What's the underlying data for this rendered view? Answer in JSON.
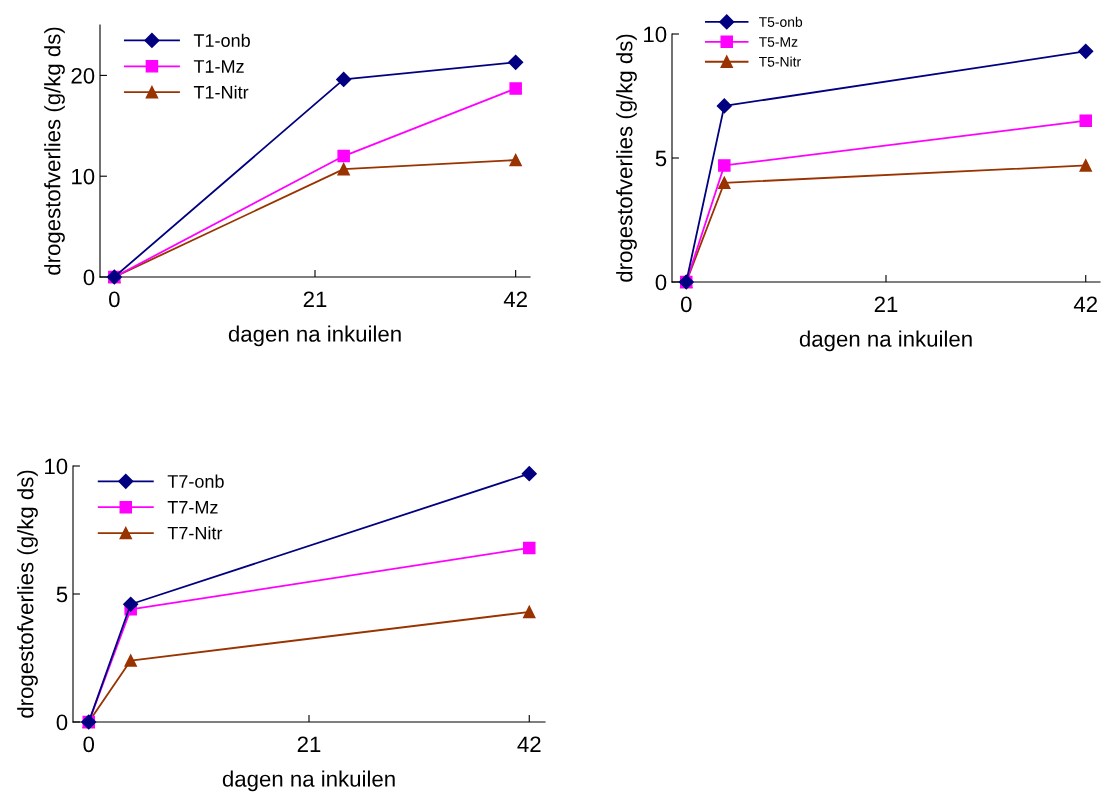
{
  "chart_data": [
    {
      "type": "line",
      "xlabel": "dagen na inkuilen",
      "ylabel": "drogestofverlies (g/kg ds)",
      "xlim": [
        -1.5,
        43.5
      ],
      "xticks": [
        0,
        21,
        42
      ],
      "ylim": [
        0,
        25
      ],
      "yticks": [
        0,
        10,
        20
      ],
      "legend": "top left",
      "grid": false,
      "series": [
        {
          "name": "T1-onb",
          "color": "#000080",
          "marker": "diamond",
          "x": [
            0,
            24,
            42
          ],
          "values": [
            0,
            19.6,
            21.3
          ]
        },
        {
          "name": "T1-Mz",
          "color": "#ff00ff",
          "marker": "square",
          "x": [
            0,
            24,
            42
          ],
          "values": [
            0,
            12.0,
            18.7
          ]
        },
        {
          "name": "T1-Nitr",
          "color": "#993300",
          "marker": "triangle",
          "x": [
            0,
            24,
            42
          ],
          "values": [
            0,
            10.7,
            11.6
          ]
        }
      ]
    },
    {
      "type": "line",
      "xlabel": "dagen na inkuilen",
      "ylabel": "drogestofverlies (g/kg ds)",
      "xlim": [
        -1.5,
        43.5
      ],
      "xticks": [
        0,
        21,
        42
      ],
      "ylim": [
        0,
        10
      ],
      "yticks": [
        0,
        5,
        10
      ],
      "legend": "top left",
      "grid": false,
      "series": [
        {
          "name": "T5-onb",
          "color": "#000080",
          "marker": "diamond",
          "x": [
            0,
            4,
            42
          ],
          "values": [
            0,
            7.1,
            9.3
          ]
        },
        {
          "name": "T5-Mz",
          "color": "#ff00ff",
          "marker": "square",
          "x": [
            0,
            4,
            42
          ],
          "values": [
            0,
            4.7,
            6.5
          ]
        },
        {
          "name": "T5-Nitr",
          "color": "#993300",
          "marker": "triangle",
          "x": [
            0,
            4,
            42
          ],
          "values": [
            0,
            4.0,
            4.7
          ]
        }
      ]
    },
    {
      "type": "line",
      "xlabel": "dagen na inkuilen",
      "ylabel": "drogestofverlies (g/kg ds)",
      "xlim": [
        -1.5,
        43.5
      ],
      "xticks": [
        0,
        21,
        42
      ],
      "ylim": [
        0,
        10
      ],
      "yticks": [
        0,
        5,
        10
      ],
      "legend": "top left",
      "grid": false,
      "series": [
        {
          "name": "T7-onb",
          "color": "#000080",
          "marker": "diamond",
          "x": [
            0,
            4,
            42
          ],
          "values": [
            0,
            4.6,
            9.7
          ]
        },
        {
          "name": "T7-Mz",
          "color": "#ff00ff",
          "marker": "square",
          "x": [
            0,
            4,
            42
          ],
          "values": [
            0,
            4.4,
            6.8
          ]
        },
        {
          "name": "T7-Nitr",
          "color": "#993300",
          "marker": "triangle",
          "x": [
            0,
            4,
            42
          ],
          "values": [
            0,
            2.4,
            4.3
          ]
        }
      ]
    }
  ]
}
